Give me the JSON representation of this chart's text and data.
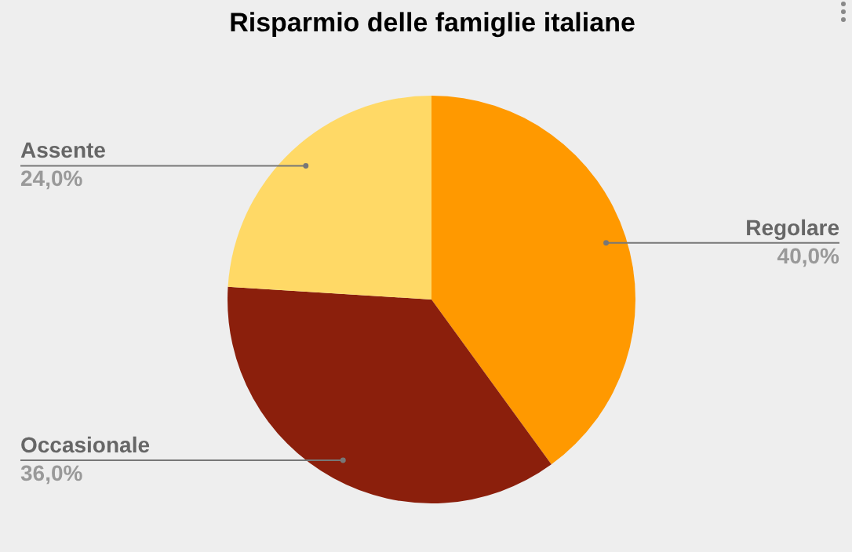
{
  "chart_data": {
    "type": "pie",
    "title": "Risparmio delle famiglie italiane",
    "categories": [
      "Regolare",
      "Occasionale",
      "Assente"
    ],
    "values": [
      40,
      36,
      24
    ],
    "value_labels": [
      "40,0%",
      "36,0%",
      "24,0%"
    ],
    "colors": [
      "#ff9900",
      "#8b1f0c",
      "#ffd966"
    ],
    "legend": false
  }
}
